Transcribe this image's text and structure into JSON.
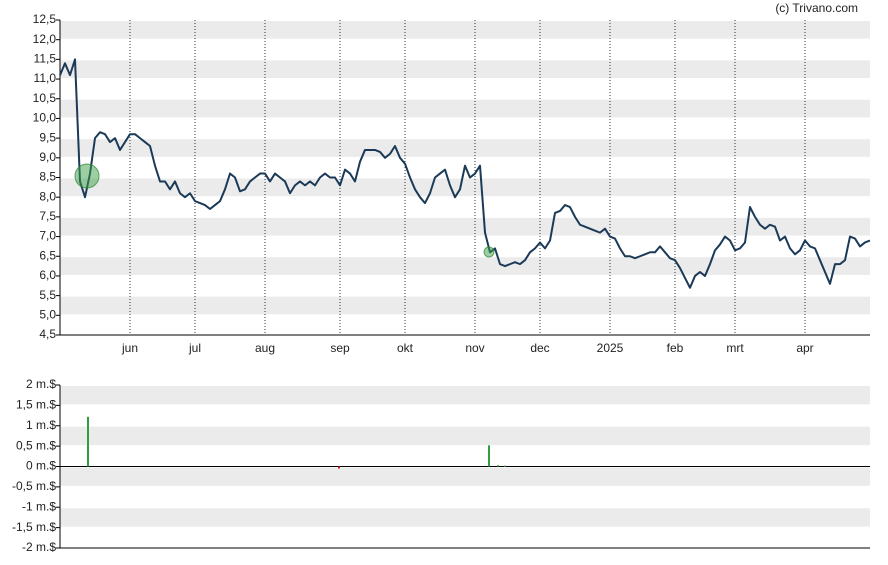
{
  "credit": "(c) Trivano.com",
  "chart_data": [
    {
      "type": "line",
      "color": "#1b3a57",
      "grid": true,
      "xlim": [
        0,
        162
      ],
      "xticks": [
        {
          "value": 14,
          "label": "jun"
        },
        {
          "value": 27,
          "label": "jul"
        },
        {
          "value": 41,
          "label": "aug"
        },
        {
          "value": 56,
          "label": "sep"
        },
        {
          "value": 69,
          "label": "okt"
        },
        {
          "value": 83,
          "label": "nov"
        },
        {
          "value": 96,
          "label": "dec"
        },
        {
          "value": 110,
          "label": "2025"
        },
        {
          "value": 123,
          "label": "feb"
        },
        {
          "value": 135,
          "label": "mrt"
        },
        {
          "value": 149,
          "label": "apr"
        }
      ],
      "ylim": [
        4.5,
        12.5
      ],
      "yticks": [
        {
          "value": 12.5,
          "label": "12,5"
        },
        {
          "value": 12,
          "label": "12,0"
        },
        {
          "value": 11.5,
          "label": "11,5"
        },
        {
          "value": 11,
          "label": "11,0"
        },
        {
          "value": 10.5,
          "label": "10,5"
        },
        {
          "value": 10,
          "label": "10,0"
        },
        {
          "value": 9.5,
          "label": "9,5"
        },
        {
          "value": 9,
          "label": "9,0"
        },
        {
          "value": 8.5,
          "label": "8,5"
        },
        {
          "value": 8,
          "label": "8,0"
        },
        {
          "value": 7.5,
          "label": "7,5"
        },
        {
          "value": 7,
          "label": "7,0"
        },
        {
          "value": 6.5,
          "label": "6,5"
        },
        {
          "value": 6,
          "label": "6,0"
        },
        {
          "value": 5.5,
          "label": "5,5"
        },
        {
          "value": 5,
          "label": "5,0"
        },
        {
          "value": 4.5,
          "label": "4,5"
        }
      ],
      "values": [
        11.1,
        11.4,
        11.1,
        11.5,
        8.4,
        8.0,
        8.6,
        9.5,
        9.65,
        9.6,
        9.4,
        9.5,
        9.2,
        9.4,
        9.6,
        9.6,
        9.5,
        9.4,
        9.3,
        8.8,
        8.4,
        8.4,
        8.2,
        8.4,
        8.1,
        8.0,
        8.1,
        7.9,
        7.85,
        7.8,
        7.7,
        7.8,
        7.9,
        8.2,
        8.6,
        8.5,
        8.15,
        8.2,
        8.4,
        8.5,
        8.6,
        8.6,
        8.4,
        8.6,
        8.5,
        8.4,
        8.1,
        8.3,
        8.4,
        8.3,
        8.4,
        8.3,
        8.5,
        8.6,
        8.5,
        8.5,
        8.3,
        8.7,
        8.6,
        8.4,
        8.9,
        9.2,
        9.2,
        9.2,
        9.15,
        9.0,
        9.1,
        9.3,
        9.0,
        8.85,
        8.5,
        8.2,
        8.0,
        7.85,
        8.1,
        8.5,
        8.6,
        8.7,
        8.3,
        8.0,
        8.2,
        8.8,
        8.5,
        8.6,
        8.8,
        7.1,
        6.6,
        6.7,
        6.3,
        6.25,
        6.3,
        6.35,
        6.3,
        6.4,
        6.6,
        6.7,
        6.85,
        6.7,
        6.9,
        7.6,
        7.65,
        7.8,
        7.75,
        7.5,
        7.3,
        7.25,
        7.2,
        7.15,
        7.1,
        7.2,
        7.0,
        6.95,
        6.7,
        6.5,
        6.5,
        6.45,
        6.5,
        6.55,
        6.6,
        6.6,
        6.75,
        6.6,
        6.45,
        6.4,
        6.2,
        5.95,
        5.7,
        6.0,
        6.1,
        6.0,
        6.3,
        6.65,
        6.8,
        7.0,
        6.9,
        6.65,
        6.7,
        6.85,
        7.75,
        7.5,
        7.3,
        7.2,
        7.3,
        7.25,
        6.9,
        7.0,
        6.7,
        6.55,
        6.65,
        6.9,
        6.75,
        6.7,
        6.4,
        6.1,
        5.8,
        6.3,
        6.3,
        6.4,
        7.0,
        6.95,
        6.75,
        6.85,
        6.9
      ]
    },
    {
      "type": "bar",
      "grid": true,
      "xlim": [
        0,
        162
      ],
      "ylim": [
        -2,
        2
      ],
      "yticks": [
        {
          "value": 2,
          "label": "2 m.$"
        },
        {
          "value": 1.5,
          "label": "1,5 m.$"
        },
        {
          "value": 1,
          "label": "1 m.$"
        },
        {
          "value": 0.5,
          "label": "0,5 m.$"
        },
        {
          "value": 0,
          "label": "0 m.$"
        },
        {
          "value": -0.5,
          "label": "-0,5 m.$"
        },
        {
          "value": -1,
          "label": "-1 m.$"
        },
        {
          "value": -1.5,
          "label": "-1,5 m.$"
        },
        {
          "value": -2,
          "label": "-2 m.$"
        }
      ],
      "x": [
        5.6,
        55.8,
        85.8,
        87.6,
        89
      ],
      "values": [
        1.22,
        -0.05,
        0.52,
        0.03,
        0.02
      ],
      "colors": [
        "#2e9e3e",
        "#d62020",
        "#2e9e3e",
        "#2e9e3e",
        "#2e9e3e"
      ]
    }
  ]
}
